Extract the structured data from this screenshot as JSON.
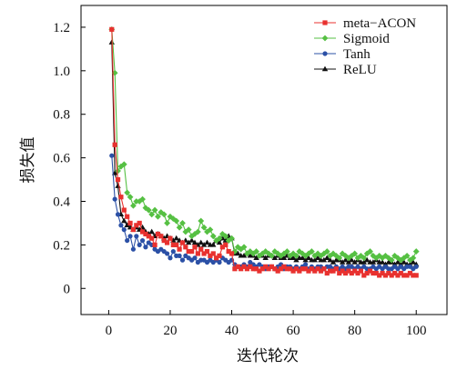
{
  "chart_data": {
    "type": "line",
    "xlabel": "迭代轮次",
    "ylabel": "损失值",
    "xlim": [
      -9,
      110
    ],
    "ylim": [
      -0.12,
      1.3
    ],
    "x_ticks": [
      "0",
      "20",
      "40",
      "60",
      "80",
      "100"
    ],
    "y_ticks": [
      "0",
      "0.2",
      "0.4",
      "0.6",
      "0.8",
      "1.0",
      "1.2"
    ],
    "legend_position": "top-right",
    "grid": false,
    "series": [
      {
        "name": "meta−ACON",
        "color": "#e8312f",
        "marker": "square",
        "x": [
          1,
          2,
          3,
          4,
          5,
          6,
          7,
          8,
          9,
          10,
          11,
          12,
          13,
          14,
          15,
          16,
          17,
          18,
          19,
          20,
          21,
          22,
          23,
          24,
          25,
          26,
          27,
          28,
          29,
          30,
          31,
          32,
          33,
          34,
          35,
          36,
          37,
          38,
          39,
          40,
          41,
          42,
          43,
          44,
          45,
          46,
          47,
          48,
          49,
          50,
          51,
          52,
          53,
          54,
          55,
          56,
          57,
          58,
          59,
          60,
          61,
          62,
          63,
          64,
          65,
          66,
          67,
          68,
          69,
          70,
          71,
          72,
          73,
          74,
          75,
          76,
          77,
          78,
          79,
          80,
          81,
          82,
          83,
          84,
          85,
          86,
          87,
          88,
          89,
          90,
          91,
          92,
          93,
          94,
          95,
          96,
          97,
          98,
          99,
          100
        ],
        "values": [
          1.19,
          0.66,
          0.5,
          0.42,
          0.36,
          0.33,
          0.3,
          0.27,
          0.29,
          0.3,
          0.26,
          0.25,
          0.24,
          0.23,
          0.2,
          0.25,
          0.24,
          0.22,
          0.21,
          0.23,
          0.2,
          0.2,
          0.18,
          0.21,
          0.19,
          0.17,
          0.17,
          0.19,
          0.16,
          0.18,
          0.16,
          0.17,
          0.15,
          0.16,
          0.14,
          0.15,
          0.19,
          0.2,
          0.17,
          0.16,
          0.09,
          0.1,
          0.09,
          0.1,
          0.09,
          0.1,
          0.09,
          0.09,
          0.08,
          0.09,
          0.1,
          0.09,
          0.1,
          0.09,
          0.08,
          0.09,
          0.1,
          0.09,
          0.09,
          0.08,
          0.09,
          0.08,
          0.09,
          0.09,
          0.08,
          0.09,
          0.08,
          0.09,
          0.08,
          0.09,
          0.07,
          0.08,
          0.08,
          0.09,
          0.07,
          0.08,
          0.07,
          0.08,
          0.07,
          0.08,
          0.07,
          0.08,
          0.06,
          0.07,
          0.08,
          0.07,
          0.07,
          0.06,
          0.07,
          0.06,
          0.07,
          0.06,
          0.07,
          0.06,
          0.07,
          0.06,
          0.06,
          0.07,
          0.06,
          0.06
        ]
      },
      {
        "name": "Sigmoid",
        "color": "#56c043",
        "marker": "diamond",
        "x": [
          1,
          2,
          3,
          4,
          5,
          6,
          7,
          8,
          9,
          10,
          11,
          12,
          13,
          14,
          15,
          16,
          17,
          18,
          19,
          20,
          21,
          22,
          23,
          24,
          25,
          26,
          27,
          28,
          29,
          30,
          31,
          32,
          33,
          34,
          35,
          36,
          37,
          38,
          39,
          40,
          41,
          42,
          43,
          44,
          45,
          46,
          47,
          48,
          49,
          50,
          51,
          52,
          53,
          54,
          55,
          56,
          57,
          58,
          59,
          60,
          61,
          62,
          63,
          64,
          65,
          66,
          67,
          68,
          69,
          70,
          71,
          72,
          73,
          74,
          75,
          76,
          77,
          78,
          79,
          80,
          81,
          82,
          83,
          84,
          85,
          86,
          87,
          88,
          89,
          90,
          91,
          92,
          93,
          94,
          95,
          96,
          97,
          98,
          99,
          100
        ],
        "values": [
          1.19,
          0.99,
          0.54,
          0.56,
          0.57,
          0.44,
          0.42,
          0.38,
          0.4,
          0.4,
          0.41,
          0.37,
          0.36,
          0.34,
          0.36,
          0.33,
          0.35,
          0.34,
          0.3,
          0.33,
          0.32,
          0.31,
          0.28,
          0.3,
          0.26,
          0.27,
          0.24,
          0.25,
          0.26,
          0.31,
          0.28,
          0.26,
          0.27,
          0.24,
          0.22,
          0.23,
          0.25,
          0.24,
          0.22,
          0.23,
          0.17,
          0.19,
          0.18,
          0.19,
          0.16,
          0.17,
          0.16,
          0.17,
          0.15,
          0.16,
          0.17,
          0.16,
          0.15,
          0.17,
          0.16,
          0.15,
          0.16,
          0.17,
          0.15,
          0.16,
          0.15,
          0.17,
          0.16,
          0.15,
          0.16,
          0.17,
          0.15,
          0.16,
          0.15,
          0.16,
          0.17,
          0.15,
          0.16,
          0.15,
          0.14,
          0.16,
          0.15,
          0.14,
          0.15,
          0.16,
          0.14,
          0.15,
          0.14,
          0.16,
          0.17,
          0.15,
          0.14,
          0.15,
          0.14,
          0.15,
          0.14,
          0.13,
          0.15,
          0.14,
          0.13,
          0.14,
          0.15,
          0.13,
          0.14,
          0.17
        ]
      },
      {
        "name": "Tanh",
        "color": "#2b50a6",
        "marker": "circle",
        "x": [
          1,
          2,
          3,
          4,
          5,
          6,
          7,
          8,
          9,
          10,
          11,
          12,
          13,
          14,
          15,
          16,
          17,
          18,
          19,
          20,
          21,
          22,
          23,
          24,
          25,
          26,
          27,
          28,
          29,
          30,
          31,
          32,
          33,
          34,
          35,
          36,
          37,
          38,
          39,
          40,
          41,
          42,
          43,
          44,
          45,
          46,
          47,
          48,
          49,
          50,
          51,
          52,
          53,
          54,
          55,
          56,
          57,
          58,
          59,
          60,
          61,
          62,
          63,
          64,
          65,
          66,
          67,
          68,
          69,
          70,
          71,
          72,
          73,
          74,
          75,
          76,
          77,
          78,
          79,
          80,
          81,
          82,
          83,
          84,
          85,
          86,
          87,
          88,
          89,
          90,
          91,
          92,
          93,
          94,
          95,
          96,
          97,
          98,
          99,
          100
        ],
        "values": [
          0.61,
          0.41,
          0.34,
          0.29,
          0.27,
          0.22,
          0.24,
          0.18,
          0.24,
          0.2,
          0.22,
          0.19,
          0.21,
          0.2,
          0.18,
          0.17,
          0.18,
          0.17,
          0.16,
          0.14,
          0.17,
          0.15,
          0.15,
          0.13,
          0.15,
          0.14,
          0.13,
          0.14,
          0.12,
          0.13,
          0.13,
          0.12,
          0.13,
          0.12,
          0.13,
          0.12,
          0.14,
          0.13,
          0.12,
          0.13,
          0.11,
          0.1,
          0.1,
          0.11,
          0.1,
          0.12,
          0.11,
          0.1,
          0.11,
          0.1,
          0.09,
          0.1,
          0.1,
          0.09,
          0.1,
          0.11,
          0.09,
          0.1,
          0.1,
          0.09,
          0.1,
          0.09,
          0.1,
          0.11,
          0.09,
          0.1,
          0.09,
          0.1,
          0.1,
          0.09,
          0.1,
          0.1,
          0.09,
          0.1,
          0.09,
          0.1,
          0.09,
          0.1,
          0.1,
          0.09,
          0.1,
          0.09,
          0.1,
          0.09,
          0.09,
          0.1,
          0.09,
          0.1,
          0.09,
          0.1,
          0.09,
          0.09,
          0.1,
          0.09,
          0.1,
          0.09,
          0.1,
          0.1,
          0.09,
          0.1
        ]
      },
      {
        "name": "ReLU",
        "color": "#111111",
        "marker": "triangle",
        "x": [
          1,
          2,
          3,
          4,
          5,
          6,
          7,
          8,
          9,
          10,
          11,
          12,
          13,
          14,
          15,
          16,
          17,
          18,
          19,
          20,
          21,
          22,
          23,
          24,
          25,
          26,
          27,
          28,
          29,
          30,
          31,
          32,
          33,
          34,
          35,
          36,
          37,
          38,
          39,
          40,
          41,
          42,
          43,
          44,
          45,
          46,
          47,
          48,
          49,
          50,
          51,
          52,
          53,
          54,
          55,
          56,
          57,
          58,
          59,
          60,
          61,
          62,
          63,
          64,
          65,
          66,
          67,
          68,
          69,
          70,
          71,
          72,
          73,
          74,
          75,
          76,
          77,
          78,
          79,
          80,
          81,
          82,
          83,
          84,
          85,
          86,
          87,
          88,
          89,
          90,
          91,
          92,
          93,
          94,
          95,
          96,
          97,
          98,
          99,
          100
        ],
        "values": [
          1.13,
          0.53,
          0.47,
          0.34,
          0.31,
          0.29,
          0.28,
          0.27,
          0.28,
          0.27,
          0.28,
          0.26,
          0.25,
          0.26,
          0.24,
          0.25,
          0.24,
          0.23,
          0.24,
          0.23,
          0.22,
          0.23,
          0.22,
          0.21,
          0.22,
          0.21,
          0.22,
          0.21,
          0.2,
          0.21,
          0.2,
          0.21,
          0.2,
          0.2,
          0.22,
          0.21,
          0.23,
          0.22,
          0.24,
          0.23,
          0.16,
          0.16,
          0.15,
          0.15,
          0.16,
          0.15,
          0.15,
          0.14,
          0.15,
          0.15,
          0.14,
          0.15,
          0.15,
          0.14,
          0.15,
          0.14,
          0.14,
          0.15,
          0.14,
          0.14,
          0.13,
          0.14,
          0.14,
          0.13,
          0.14,
          0.13,
          0.13,
          0.14,
          0.13,
          0.13,
          0.14,
          0.13,
          0.12,
          0.13,
          0.13,
          0.12,
          0.13,
          0.12,
          0.13,
          0.12,
          0.13,
          0.12,
          0.12,
          0.13,
          0.12,
          0.12,
          0.13,
          0.12,
          0.12,
          0.11,
          0.12,
          0.12,
          0.11,
          0.12,
          0.11,
          0.12,
          0.11,
          0.11,
          0.12,
          0.11
        ]
      }
    ]
  }
}
